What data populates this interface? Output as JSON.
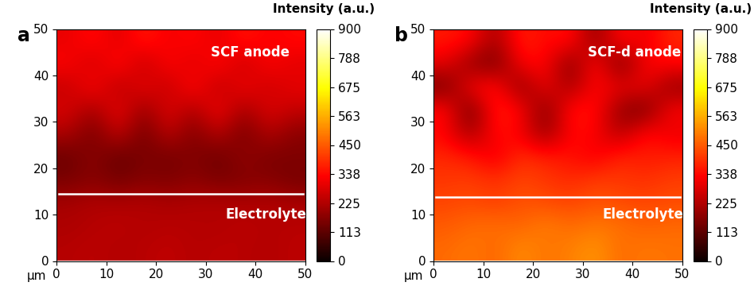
{
  "chart_data": [
    {
      "type": "heatmap",
      "panel_label": "a",
      "anode_label": "SCF anode",
      "electrolyte_label": "Electrolyte",
      "boundary_y": 14.5,
      "x_unit": "µm",
      "xlim": [
        0,
        50
      ],
      "ylim": [
        0,
        50
      ],
      "xticks": [
        0,
        10,
        20,
        30,
        40,
        50
      ],
      "yticks": [
        0,
        10,
        20,
        30,
        40,
        50
      ],
      "cells": [
        [
          230,
          240,
          225,
          235,
          245,
          230,
          240,
          235,
          225,
          240
        ],
        [
          220,
          230,
          240,
          225,
          235,
          230,
          225,
          240,
          230,
          235
        ],
        [
          210,
          225,
          220,
          230,
          215,
          225,
          230,
          220,
          225,
          215
        ],
        [
          150,
          170,
          140,
          165,
          155,
          175,
          150,
          160,
          170,
          145
        ],
        [
          130,
          180,
          120,
          160,
          140,
          170,
          130,
          190,
          150,
          160
        ],
        [
          220,
          140,
          260,
          130,
          250,
          150,
          240,
          140,
          230,
          170
        ],
        [
          280,
          200,
          320,
          180,
          300,
          210,
          330,
          200,
          290,
          250
        ],
        [
          250,
          340,
          220,
          310,
          240,
          350,
          230,
          320,
          260,
          300
        ],
        [
          330,
          260,
          360,
          240,
          340,
          280,
          350,
          250,
          330,
          290
        ],
        [
          300,
          350,
          280,
          370,
          310,
          340,
          290,
          360,
          320,
          340
        ]
      ],
      "colorbar": {
        "title": "Intensity (a.u.)",
        "range": [
          0,
          900
        ],
        "ticks": [
          0,
          113,
          225,
          338,
          450,
          563,
          675,
          788,
          900
        ]
      }
    },
    {
      "type": "heatmap",
      "panel_label": "b",
      "anode_label": "SCF-d anode",
      "electrolyte_label": "Electrolyte",
      "boundary_y": 13.8,
      "x_unit": "µm",
      "xlim": [
        0,
        50
      ],
      "ylim": [
        0,
        50
      ],
      "xticks": [
        0,
        10,
        20,
        30,
        40,
        50
      ],
      "yticks": [
        0,
        10,
        20,
        30,
        40,
        50
      ],
      "cells": [
        [
          470,
          490,
          460,
          520,
          480,
          500,
          530,
          470,
          490,
          480
        ],
        [
          450,
          470,
          480,
          460,
          500,
          470,
          490,
          480,
          460,
          470
        ],
        [
          420,
          430,
          410,
          440,
          430,
          420,
          440,
          430,
          420,
          430
        ],
        [
          400,
          410,
          390,
          420,
          400,
          380,
          410,
          400,
          390,
          410
        ],
        [
          380,
          360,
          300,
          390,
          370,
          350,
          310,
          380,
          360,
          370
        ],
        [
          330,
          200,
          350,
          320,
          180,
          340,
          330,
          220,
          350,
          300
        ],
        [
          350,
          120,
          380,
          340,
          150,
          360,
          350,
          180,
          140,
          330
        ],
        [
          140,
          330,
          360,
          160,
          320,
          200,
          340,
          300,
          310,
          180
        ],
        [
          300,
          180,
          140,
          330,
          340,
          150,
          360,
          130,
          330,
          340
        ],
        [
          360,
          340,
          200,
          380,
          330,
          360,
          170,
          350,
          300,
          380
        ]
      ],
      "colorbar": {
        "title": "Intensity (a.u.)",
        "range": [
          0,
          900
        ],
        "ticks": [
          0,
          113,
          225,
          338,
          450,
          563,
          675,
          788,
          900
        ]
      }
    }
  ]
}
